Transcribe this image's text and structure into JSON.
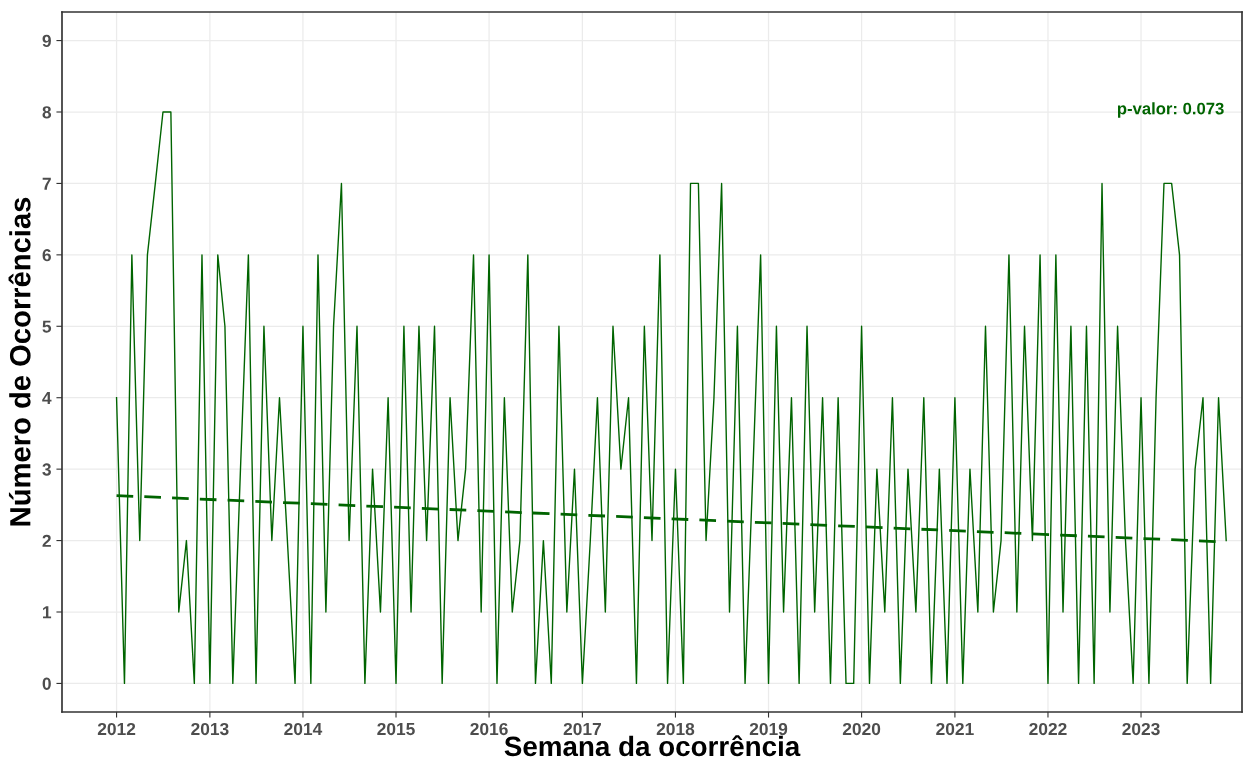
{
  "chart_data": {
    "type": "line",
    "xlabel": "Semana da ocorrência",
    "ylabel": "Número de Ocorrências",
    "annotations": [
      "p-valor: 0.073"
    ],
    "x": [
      "2012-01",
      "2012-02",
      "2012-03",
      "2012-04",
      "2012-05",
      "2012-06",
      "2012-07",
      "2012-08",
      "2012-09",
      "2012-10",
      "2012-11",
      "2012-12",
      "2013-01",
      "2013-02",
      "2013-03",
      "2013-04",
      "2013-05",
      "2013-06",
      "2013-07",
      "2013-08",
      "2013-09",
      "2013-10",
      "2013-11",
      "2013-12",
      "2014-01",
      "2014-02",
      "2014-03",
      "2014-04",
      "2014-05",
      "2014-06",
      "2014-07",
      "2014-08",
      "2014-09",
      "2014-10",
      "2014-11",
      "2014-12",
      "2015-01",
      "2015-02",
      "2015-03",
      "2015-04",
      "2015-05",
      "2015-06",
      "2015-07",
      "2015-08",
      "2015-09",
      "2015-10",
      "2015-11",
      "2015-12",
      "2016-01",
      "2016-02",
      "2016-03",
      "2016-04",
      "2016-05",
      "2016-06",
      "2016-07",
      "2016-08",
      "2016-09",
      "2016-10",
      "2016-11",
      "2016-12",
      "2017-01",
      "2017-02",
      "2017-03",
      "2017-04",
      "2017-05",
      "2017-06",
      "2017-07",
      "2017-08",
      "2017-09",
      "2017-10",
      "2017-11",
      "2017-12",
      "2018-01",
      "2018-02",
      "2018-03",
      "2018-04",
      "2018-05",
      "2018-06",
      "2018-07",
      "2018-08",
      "2018-09",
      "2018-10",
      "2018-11",
      "2018-12",
      "2019-01",
      "2019-02",
      "2019-03",
      "2019-04",
      "2019-05",
      "2019-06",
      "2019-07",
      "2019-08",
      "2019-09",
      "2019-10",
      "2019-11",
      "2019-12",
      "2020-01",
      "2020-02",
      "2020-03",
      "2020-04",
      "2020-05",
      "2020-06",
      "2020-07",
      "2020-08",
      "2020-09",
      "2020-10",
      "2020-11",
      "2020-12",
      "2021-01",
      "2021-02",
      "2021-03",
      "2021-04",
      "2021-05",
      "2021-06",
      "2021-07",
      "2021-08",
      "2021-09",
      "2021-10",
      "2021-11",
      "2021-12",
      "2022-01",
      "2022-02",
      "2022-03",
      "2022-04",
      "2022-05",
      "2022-06",
      "2022-07",
      "2022-08",
      "2022-09",
      "2022-10",
      "2022-11",
      "2022-12",
      "2023-01",
      "2023-02",
      "2023-03",
      "2023-04",
      "2023-05",
      "2023-06",
      "2023-07",
      "2023-08",
      "2023-09",
      "2023-10",
      "2023-11",
      "2023-12"
    ],
    "series": [
      {
        "color": "#006400",
        "line_style": "solid",
        "values": [
          4,
          0,
          6,
          2,
          6,
          7,
          8,
          8,
          1,
          2,
          0,
          6,
          0,
          6,
          5,
          0,
          3,
          6,
          0,
          5,
          2,
          4,
          2,
          0,
          5,
          0,
          6,
          1,
          5,
          7,
          2,
          5,
          0,
          3,
          1,
          4,
          0,
          5,
          1,
          5,
          2,
          5,
          0,
          4,
          2,
          3,
          6,
          1,
          6,
          0,
          4,
          1,
          2,
          6,
          0,
          2,
          0,
          5,
          1,
          3,
          0,
          2,
          4,
          1,
          5,
          3,
          4,
          0,
          5,
          2,
          6,
          0,
          3,
          0,
          7,
          7,
          2,
          4,
          7,
          1,
          5,
          0,
          3,
          6,
          0,
          5,
          1,
          4,
          0,
          5,
          1,
          4,
          0,
          4,
          0,
          0,
          5,
          0,
          3,
          1,
          4,
          0,
          3,
          1,
          4,
          0,
          3,
          0,
          4,
          0,
          3,
          1,
          5,
          1,
          2,
          6,
          1,
          5,
          2,
          6,
          0,
          6,
          1,
          5,
          0,
          5,
          0,
          7,
          1,
          5,
          2,
          0,
          4,
          0,
          4,
          7,
          7,
          6,
          0,
          3,
          4,
          0,
          4,
          2
        ]
      },
      {
        "type": "line",
        "color": "#006400",
        "line_style": "dashed",
        "x": [
          "2012-01",
          "2023-12"
        ],
        "values": [
          2.63,
          1.98
        ]
      }
    ],
    "xlim": [
      "2011-06",
      "2024-02"
    ],
    "xticks": [
      "2012",
      "2013",
      "2014",
      "2015",
      "2016",
      "2017",
      "2018",
      "2019",
      "2020",
      "2021",
      "2022",
      "2023"
    ],
    "ylim": [
      -0.4,
      9.4
    ],
    "yticks": [
      0,
      1,
      2,
      3,
      4,
      5,
      6,
      7,
      8,
      9
    ],
    "grid": true
  }
}
